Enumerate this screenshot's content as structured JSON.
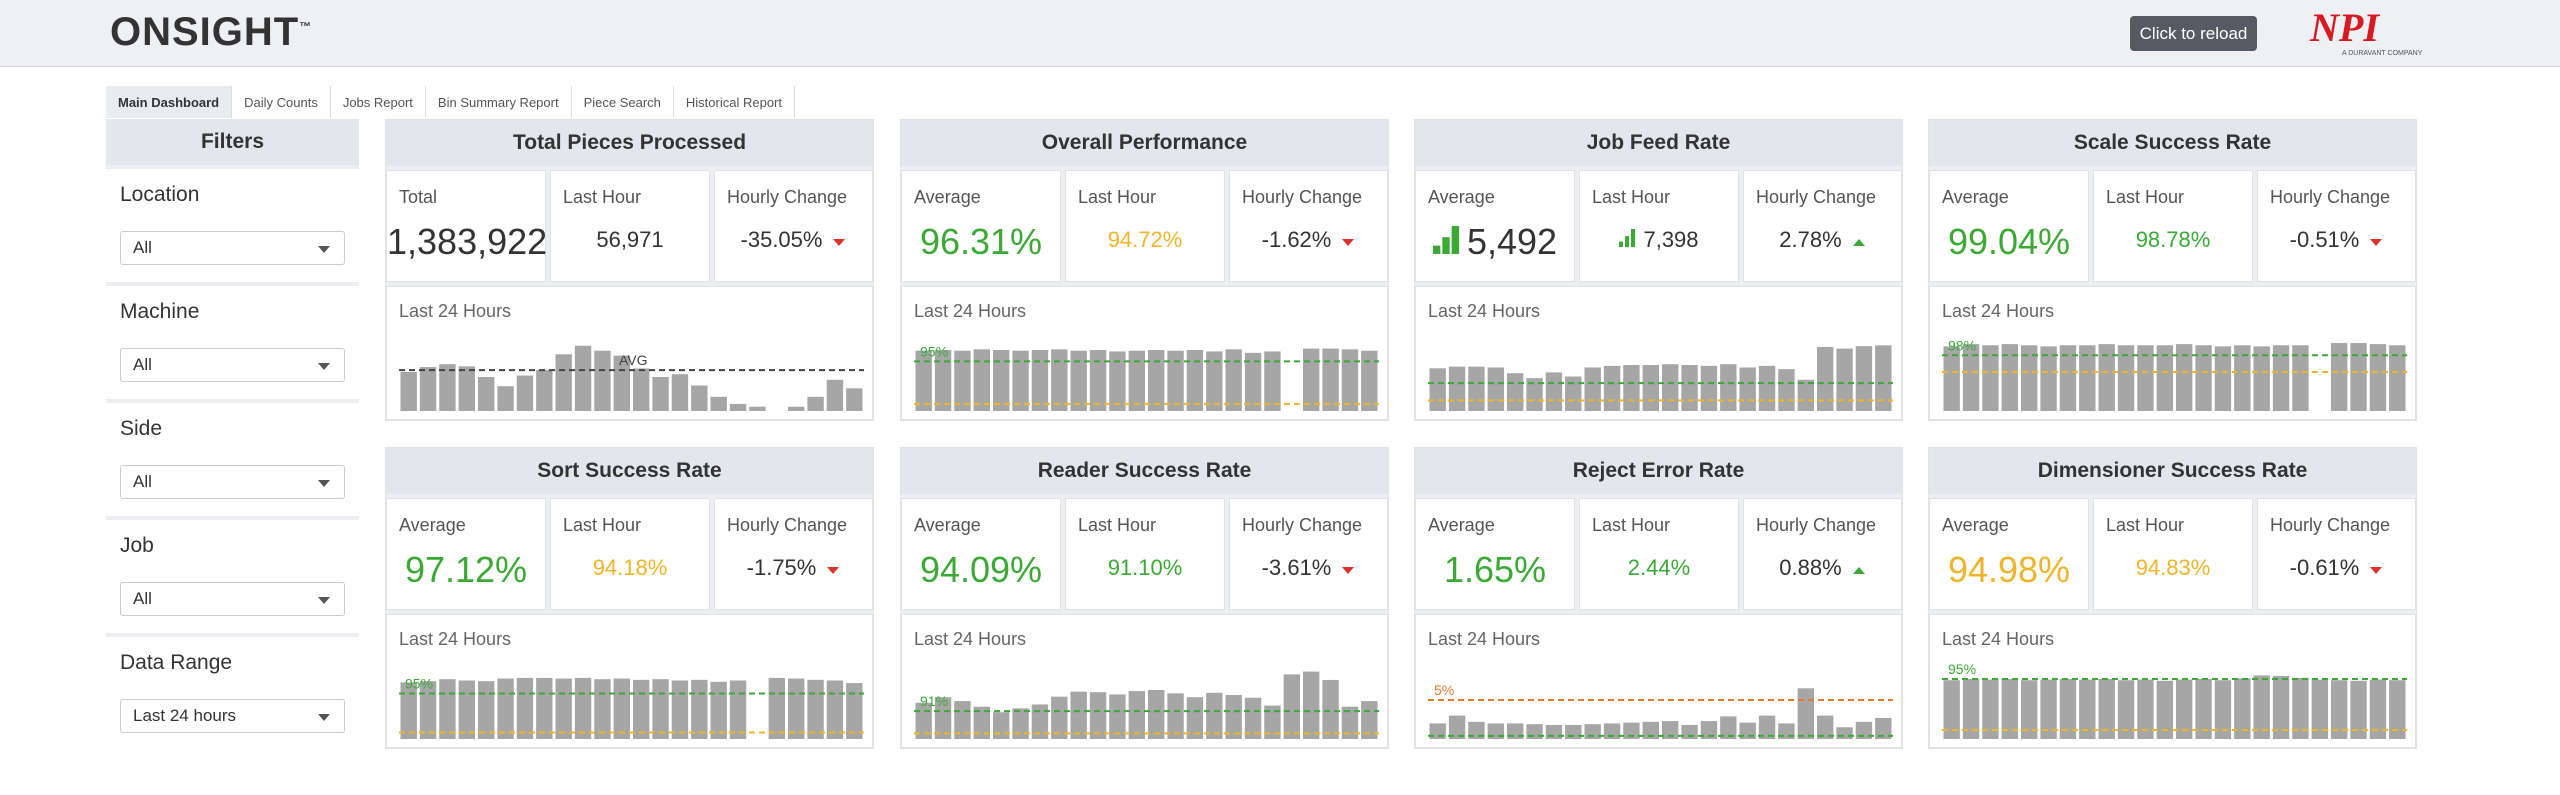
{
  "header": {
    "logo": "ONSIGHT",
    "trademark": "™",
    "reload": "Click to reload",
    "brand": "NPI",
    "brand_sub": "A DURAVANT COMPANY"
  },
  "tabs": [
    "Main Dashboard",
    "Daily Counts",
    "Jobs Report",
    "Bin Summary Report",
    "Piece Search",
    "Historical Report"
  ],
  "filters": {
    "title": "Filters",
    "items": [
      {
        "label": "Location",
        "value": "All"
      },
      {
        "label": "Machine",
        "value": "All"
      },
      {
        "label": "Side",
        "value": "All"
      },
      {
        "label": "Job",
        "value": "All"
      },
      {
        "label": "Data Range",
        "value": "Last 24 hours"
      }
    ]
  },
  "panels": [
    {
      "title": "Total Pieces Processed",
      "stats": [
        {
          "label": "Total",
          "value": "1,383,922",
          "color": "#333"
        },
        {
          "label": "Last Hour",
          "value": "56,971",
          "color": "#333"
        },
        {
          "label": "Hourly Change",
          "value": "-35.05%",
          "color": "#333",
          "trend": "down"
        }
      ],
      "chart": {
        "label": "Last 24 Hours",
        "ylim": [
          0,
          110000
        ],
        "bars": [
          55000,
          62000,
          66000,
          63000,
          48000,
          35000,
          50000,
          58000,
          80000,
          92000,
          85000,
          78000,
          60000,
          48000,
          52000,
          36000,
          20000,
          10000,
          6000,
          null,
          6000,
          20000,
          44000,
          32000
        ],
        "lines": [
          {
            "label": "AVG",
            "value": 57663,
            "color": "#444"
          }
        ]
      }
    },
    {
      "title": "Overall Performance",
      "stats": [
        {
          "label": "Average",
          "value": "96.31%",
          "color": "#3aaa35"
        },
        {
          "label": "Last Hour",
          "value": "94.72%",
          "color": "#f0b429"
        },
        {
          "label": "Hourly Change",
          "value": "-1.62%",
          "color": "#333",
          "trend": "down"
        }
      ],
      "chart": {
        "label": "Last 24 Hours",
        "ylim": [
          88,
          99
        ],
        "bars": [
          96.5,
          96.6,
          96.5,
          96.7,
          96.6,
          96.5,
          96.6,
          96.7,
          96.5,
          96.6,
          96.4,
          96.5,
          96.6,
          96.5,
          96.6,
          96.4,
          96.7,
          96.2,
          96.4,
          null,
          96.8,
          96.8,
          96.7,
          96.5
        ],
        "lines": [
          {
            "label": "95%",
            "value": 95,
            "color": "#3aaa35"
          },
          {
            "value": 89,
            "color": "#f0b429"
          }
        ]
      }
    },
    {
      "title": "Job Feed Rate",
      "stats": [
        {
          "label": "Average",
          "value": "5,492",
          "color": "#333",
          "icon": true
        },
        {
          "label": "Last Hour",
          "value": "7,398",
          "color": "#333",
          "icon": true
        },
        {
          "label": "Hourly Change",
          "value": "2.78%",
          "color": "#333",
          "trend": "up"
        }
      ],
      "chart": {
        "label": "Last 24 Hours",
        "ylim": [
          0,
          9500
        ],
        "bars": [
          5200,
          5400,
          5400,
          5300,
          4600,
          4000,
          4700,
          4200,
          5300,
          5500,
          5600,
          5600,
          5700,
          5600,
          5500,
          5700,
          5300,
          5500,
          5100,
          3800,
          7800,
          7600,
          7900,
          8000
        ],
        "lines": [
          {
            "value": 3400,
            "color": "#3aaa35"
          },
          {
            "value": 1300,
            "color": "#f0b429"
          }
        ]
      }
    },
    {
      "title": "Scale Success Rate",
      "stats": [
        {
          "label": "Average",
          "value": "99.04%",
          "color": "#3aaa35"
        },
        {
          "label": "Last Hour",
          "value": "98.78%",
          "color": "#3aaa35"
        },
        {
          "label": "Hourly Change",
          "value": "-0.51%",
          "color": "#333",
          "trend": "down"
        }
      ],
      "chart": {
        "label": "Last 24 Hours",
        "ylim": [
          93,
          100
        ],
        "bars": [
          98.8,
          99.0,
          98.9,
          99.0,
          98.9,
          98.8,
          98.9,
          98.9,
          99.0,
          98.9,
          98.9,
          98.9,
          99.0,
          98.9,
          98.8,
          98.9,
          98.8,
          98.9,
          98.9,
          null,
          99.1,
          99.1,
          99.0,
          98.9
        ],
        "lines": [
          {
            "label": "98%",
            "value": 98,
            "color": "#3aaa35"
          },
          {
            "value": 96.5,
            "color": "#f0b429"
          }
        ]
      }
    },
    {
      "title": "Sort Success Rate",
      "stats": [
        {
          "label": "Average",
          "value": "97.12%",
          "color": "#3aaa35"
        },
        {
          "label": "Last Hour",
          "value": "94.18%",
          "color": "#f0b429"
        },
        {
          "label": "Hourly Change",
          "value": "-1.75%",
          "color": "#333",
          "trend": "down"
        }
      ],
      "chart": {
        "label": "Last 24 Hours",
        "ylim": [
          88,
          100
        ],
        "bars": [
          96.7,
          96.9,
          97.2,
          97.0,
          96.9,
          97.3,
          97.4,
          97.4,
          97.3,
          97.4,
          97.2,
          97.3,
          97.1,
          97.2,
          97.0,
          97.1,
          96.8,
          97.0,
          null,
          97.4,
          97.3,
          97.1,
          97.0,
          96.6
        ],
        "lines": [
          {
            "label": "95%",
            "value": 95,
            "color": "#3aaa35"
          },
          {
            "value": 89,
            "color": "#f0b429"
          }
        ]
      }
    },
    {
      "title": "Reader Success Rate",
      "stats": [
        {
          "label": "Average",
          "value": "94.09%",
          "color": "#3aaa35"
        },
        {
          "label": "Last Hour",
          "value": "91.10%",
          "color": "#3aaa35"
        },
        {
          "label": "Hourly Change",
          "value": "-3.61%",
          "color": "#333",
          "trend": "down"
        }
      ],
      "chart": {
        "label": "Last 24 Hours",
        "ylim": [
          86,
          100
        ],
        "bars": [
          92.5,
          93.5,
          92.8,
          91.8,
          90.8,
          91.5,
          92.2,
          93.6,
          94.5,
          94.4,
          94.0,
          94.6,
          94.8,
          94.2,
          93.5,
          94.3,
          93.9,
          93.4,
          92.0,
          97.6,
          98.1,
          96.6,
          91.8,
          92.8
        ],
        "lines": [
          {
            "label": "91%",
            "value": 91,
            "color": "#3aaa35"
          },
          {
            "value": 87,
            "color": "#f0b429"
          }
        ]
      }
    },
    {
      "title": "Reject Error Rate",
      "stats": [
        {
          "label": "Average",
          "value": "1.65%",
          "color": "#3aaa35"
        },
        {
          "label": "Last Hour",
          "value": "2.44%",
          "color": "#3aaa35"
        },
        {
          "label": "Hourly Change",
          "value": "0.88%",
          "color": "#333",
          "trend": "up"
        }
      ],
      "chart": {
        "label": "Last 24 Hours",
        "ylim": [
          0,
          10
        ],
        "bars": [
          2.0,
          3.0,
          2.2,
          2.0,
          2.0,
          1.9,
          1.8,
          1.8,
          1.9,
          2.0,
          2.1,
          2.2,
          2.3,
          1.8,
          2.3,
          2.9,
          2.1,
          3.0,
          2.0,
          6.5,
          3.0,
          1.5,
          2.2,
          2.7
        ],
        "lines": [
          {
            "label": "5%",
            "value": 5,
            "color": "#e8782a"
          },
          {
            "value": 0.4,
            "color": "#3aaa35"
          }
        ]
      }
    },
    {
      "title": "Dimensioner Success Rate",
      "stats": [
        {
          "label": "Average",
          "value": "94.98%",
          "color": "#f0b429"
        },
        {
          "label": "Last Hour",
          "value": "94.83%",
          "color": "#f0b429"
        },
        {
          "label": "Hourly Change",
          "value": "-0.61%",
          "color": "#333",
          "trend": "down"
        }
      ],
      "chart": {
        "label": "Last 24 Hours",
        "ylim": [
          85,
          98
        ],
        "bars": [
          94.8,
          95.0,
          94.9,
          95.0,
          94.8,
          94.9,
          95.0,
          94.9,
          95.0,
          94.8,
          94.9,
          94.7,
          94.9,
          95.0,
          94.8,
          95.1,
          95.6,
          95.5,
          95.2,
          94.9,
          94.8,
          94.7,
          94.9,
          94.8
        ],
        "lines": [
          {
            "label": "95%",
            "value": 95,
            "color": "#3aaa35"
          },
          {
            "value": 86.5,
            "color": "#f0b429"
          }
        ]
      }
    }
  ]
}
